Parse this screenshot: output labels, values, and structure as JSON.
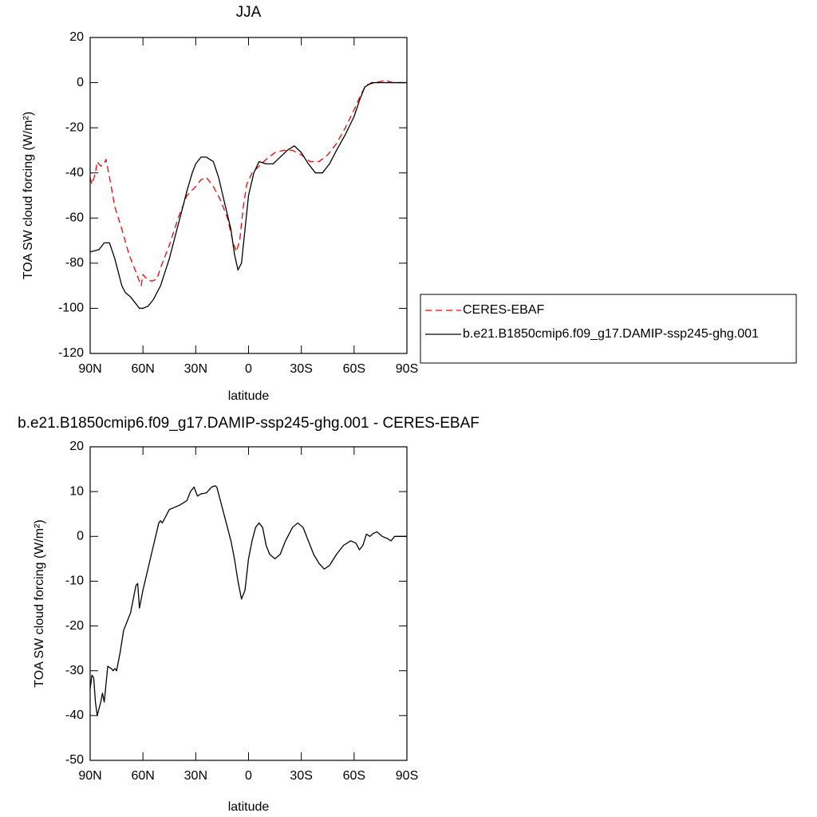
{
  "chart_data": [
    {
      "type": "line",
      "title": "JJA",
      "xlabel": "latitude",
      "ylabel": "TOA SW cloud forcing (W/m²)",
      "xlim": [
        90,
        -90
      ],
      "xticks": [
        {
          "value": 90,
          "label": "90N"
        },
        {
          "value": 60,
          "label": "60N"
        },
        {
          "value": 30,
          "label": "30N"
        },
        0,
        {
          "value": -30,
          "label": "30S"
        },
        {
          "value": -60,
          "label": "60S"
        },
        {
          "value": -90,
          "label": "90S"
        }
      ],
      "ylim": [
        -120,
        20
      ],
      "yticks": [
        -120,
        -100,
        -80,
        -60,
        -40,
        -20,
        0,
        20
      ],
      "legend": "right",
      "series": [
        {
          "name": "CERES-EBAF",
          "color": "#ff0000",
          "dash": true,
          "x": [
            90,
            89,
            87,
            86,
            84,
            82,
            81,
            79,
            76,
            72,
            68,
            65,
            62,
            61,
            60,
            58,
            55,
            52,
            50,
            45,
            40,
            35,
            30,
            27,
            24,
            20,
            16,
            12,
            9,
            7,
            5,
            3,
            1,
            -2,
            -6,
            -10,
            -15,
            -20,
            -25,
            -30,
            -35,
            -40,
            -45,
            -50,
            -55,
            -60,
            -64,
            -67,
            -72,
            -78,
            -82,
            -90
          ],
          "values": [
            -42,
            -45,
            -40,
            -35,
            -37,
            -36,
            -34,
            -42,
            -55,
            -65,
            -76,
            -82,
            -88,
            -90,
            -85,
            -87,
            -88,
            -87,
            -82,
            -72,
            -60,
            -50,
            -46,
            -43,
            -42,
            -46,
            -52,
            -60,
            -70,
            -75,
            -70,
            -55,
            -45,
            -40,
            -37,
            -34,
            -31,
            -30,
            -30,
            -32,
            -35,
            -35,
            -32,
            -27,
            -20,
            -12,
            -5,
            -1,
            0,
            1,
            0,
            0
          ]
        },
        {
          "name": "b.e21.B1850cmip6.f09_g17.DAMIP-ssp245-ghg.001",
          "color": "#000000",
          "dash": false,
          "x": [
            90,
            85,
            82,
            79,
            76,
            72,
            70,
            67,
            65,
            62,
            60,
            57,
            54,
            50,
            45,
            40,
            35,
            32,
            30,
            27,
            24,
            20,
            17,
            14,
            10,
            8,
            6,
            4,
            2,
            0,
            -3,
            -6,
            -10,
            -14,
            -18,
            -22,
            -26,
            -30,
            -34,
            -38,
            -42,
            -46,
            -50,
            -55,
            -60,
            -63,
            -66,
            -70,
            -75,
            -80,
            -90
          ],
          "values": [
            -75,
            -74,
            -71,
            -71,
            -78,
            -90,
            -93,
            -95,
            -97,
            -100,
            -100,
            -99,
            -96,
            -90,
            -78,
            -63,
            -48,
            -40,
            -36,
            -33,
            -33,
            -35,
            -42,
            -52,
            -65,
            -76,
            -83,
            -80,
            -65,
            -50,
            -40,
            -35,
            -36,
            -36,
            -33,
            -30,
            -28,
            -31,
            -36,
            -40,
            -40,
            -36,
            -30,
            -23,
            -15,
            -8,
            -2,
            0,
            0,
            0,
            0
          ]
        }
      ]
    },
    {
      "type": "line",
      "title": "b.e21.B1850cmip6.f09_g17.DAMIP-ssp245-ghg.001 - CERES-EBAF",
      "xlabel": "latitude",
      "ylabel": "TOA SW cloud forcing (W/m²)",
      "xlim": [
        90,
        -90
      ],
      "xticks": [
        {
          "value": 90,
          "label": "90N"
        },
        {
          "value": 60,
          "label": "60N"
        },
        {
          "value": 30,
          "label": "30N"
        },
        0,
        {
          "value": -30,
          "label": "30S"
        },
        {
          "value": -60,
          "label": "60S"
        },
        {
          "value": -90,
          "label": "90S"
        }
      ],
      "ylim": [
        -50,
        20
      ],
      "yticks": [
        -50,
        -40,
        -30,
        -20,
        -10,
        0,
        10,
        20
      ],
      "series": [
        {
          "color": "#000000",
          "dash": false,
          "x": [
            90,
            89,
            88,
            87,
            86,
            84,
            83,
            82,
            80,
            78,
            77,
            76,
            75,
            73,
            71,
            69,
            67,
            65,
            64,
            63,
            62,
            60,
            57,
            54,
            51,
            50,
            49,
            47,
            45,
            42,
            39,
            37,
            35,
            33,
            31,
            29,
            27,
            24,
            21,
            19,
            18,
            16,
            14,
            12,
            10,
            8,
            6,
            4,
            2,
            0,
            -2,
            -4,
            -6,
            -8,
            -10,
            -12,
            -15,
            -18,
            -21,
            -25,
            -28,
            -31,
            -34,
            -37,
            -40,
            -43,
            -46,
            -50,
            -54,
            -58,
            -61,
            -63,
            -65,
            -67,
            -69,
            -71,
            -73,
            -76,
            -79,
            -81,
            -83,
            -86,
            -90
          ],
          "values": [
            -34,
            -31,
            -31.5,
            -37,
            -40,
            -37,
            -35,
            -37,
            -29,
            -29.5,
            -30,
            -29.5,
            -30,
            -26,
            -21,
            -19,
            -17,
            -13,
            -11,
            -10.5,
            -16,
            -12,
            -7,
            -2,
            3,
            3.5,
            3,
            4.5,
            6,
            6.5,
            7,
            7.5,
            8,
            10,
            11,
            9,
            9.5,
            9.7,
            11,
            11.3,
            11,
            8,
            5,
            2,
            -1,
            -5,
            -10,
            -14,
            -12,
            -5,
            -1,
            2,
            3,
            2,
            -2,
            -4,
            -5,
            -4,
            -1,
            2,
            3,
            2,
            -1,
            -4,
            -6,
            -7.3,
            -6.5,
            -4,
            -2,
            -1,
            -1.5,
            -3,
            -2,
            0.5,
            0,
            0.7,
            1,
            0,
            -0.5,
            -1,
            0,
            0,
            0
          ]
        }
      ]
    }
  ]
}
